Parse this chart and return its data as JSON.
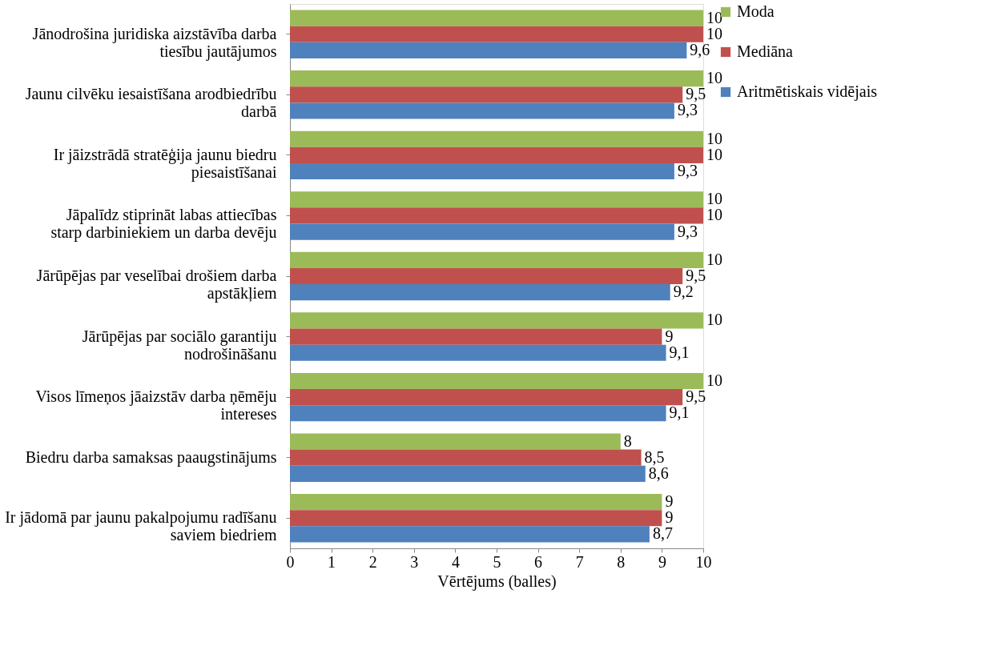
{
  "chart_data": {
    "type": "bar",
    "orientation": "horizontal",
    "xlabel": "Vērtējums (balles)",
    "categories": [
      "Jānodrošina juridiska aizstāvība darba tiesību jautājumos",
      "Jaunu cilvēku iesaistīšana arodbiedrību darbā",
      "Ir jāizstrādā stratēģija jaunu biedru piesaistīšanai",
      "Jāpalīdz stiprināt labas attiecības starp darbiniekiem un darba devēju",
      "Jārūpējas par veselībai drošiem darba apstākļiem",
      "Jārūpējas par sociālo garantiju nodrošināšanu",
      "Visos līmeņos jāaizstāv darba ņēmēju intereses",
      "Biedru darba samaksas paaugstinājums",
      "Ir jādomā par jaunu pakalpojumu radīšanu saviem biedriem"
    ],
    "series": [
      {
        "name": "Moda",
        "color": "#9bbb59",
        "values": [
          10,
          10,
          10,
          10,
          10,
          10,
          10,
          8,
          9
        ],
        "value_labels": [
          "10",
          "10",
          "10",
          "10",
          "10",
          "10",
          "10",
          "8",
          "9"
        ]
      },
      {
        "name": "Mediāna",
        "color": "#c0504d",
        "values": [
          10,
          9.5,
          10,
          10,
          9.5,
          9,
          9.5,
          8.5,
          9
        ],
        "value_labels": [
          "10",
          "9,5",
          "10",
          "10",
          "9,5",
          "9",
          "9,5",
          "8,5",
          "9"
        ]
      },
      {
        "name": "Aritmētiskais vidējais",
        "color": "#4f81bd",
        "values": [
          9.6,
          9.3,
          9.3,
          9.3,
          9.2,
          9.1,
          9.1,
          8.6,
          8.7
        ],
        "value_labels": [
          "9,6",
          "9,3",
          "9,3",
          "9,3",
          "9,2",
          "9,1",
          "9,1",
          "8,6",
          "8,7"
        ]
      }
    ],
    "xlim": [
      0,
      10
    ],
    "xticks": [
      0,
      1,
      2,
      3,
      4,
      5,
      6,
      7,
      8,
      9,
      10
    ],
    "grid": false,
    "legend": "right"
  }
}
